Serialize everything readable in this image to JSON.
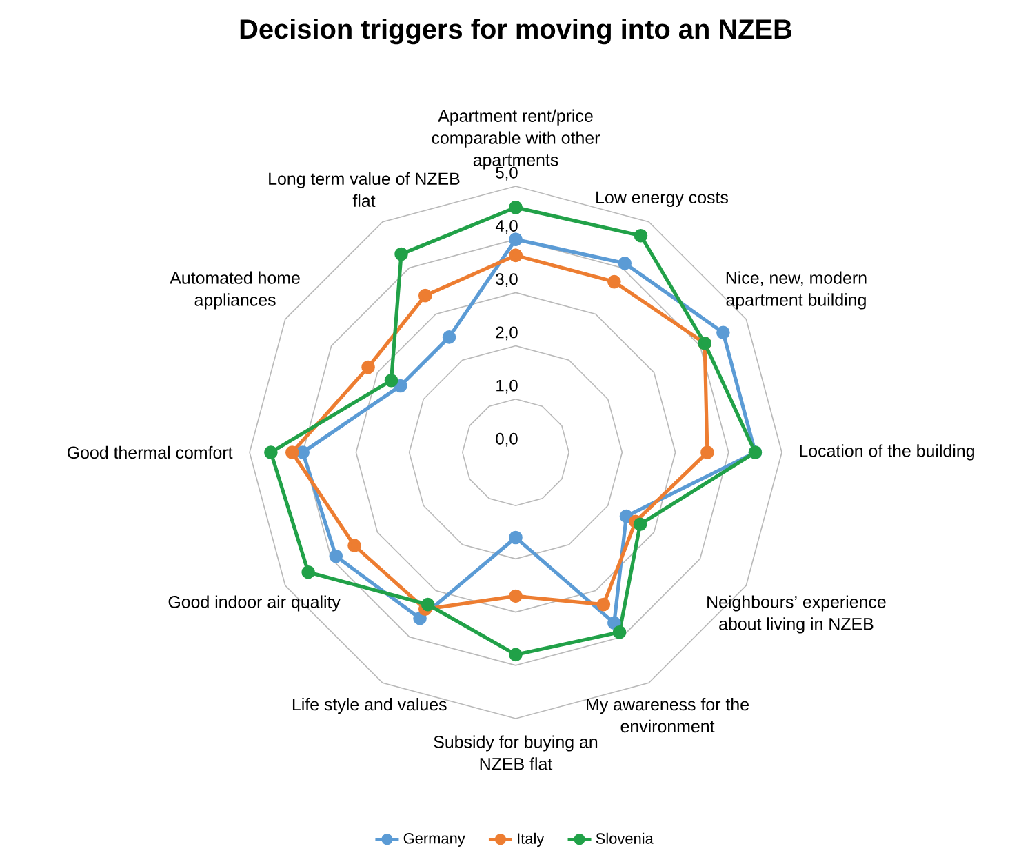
{
  "chart_data": {
    "type": "radar",
    "title": "Decision triggers for moving into an NZEB",
    "categories": [
      "Apartment rent/price comparable with other apartments",
      "Low energy costs",
      "Nice, new, modern apartment building",
      "Location of the building",
      "Neighbours’ experience about living in NZEB",
      "My awareness for the environment",
      "Subsidy for buying an NZEB flat",
      "Life style and values",
      "Good indoor air quality",
      "Good thermal comfort",
      "Automated home appliances",
      "Long term value of NZEB flat"
    ],
    "series": [
      {
        "name": "Germany",
        "color": "#5b9bd5",
        "values": [
          4.0,
          4.1,
          4.5,
          4.5,
          2.4,
          3.7,
          1.6,
          3.6,
          3.9,
          4.0,
          2.5,
          2.5
        ]
      },
      {
        "name": "Italy",
        "color": "#ed7d31",
        "values": [
          3.7,
          3.7,
          4.1,
          3.6,
          2.6,
          3.3,
          2.7,
          3.4,
          3.5,
          4.2,
          3.2,
          3.4
        ]
      },
      {
        "name": "Slovenia",
        "color": "#21a148",
        "values": [
          4.6,
          4.7,
          4.1,
          4.5,
          2.7,
          3.9,
          3.8,
          3.3,
          4.5,
          4.6,
          2.7,
          4.3
        ]
      }
    ],
    "ylim": [
      0,
      5
    ],
    "yticks": [
      {
        "value": 0,
        "label": "0,0"
      },
      {
        "value": 1,
        "label": "1,0"
      },
      {
        "value": 2,
        "label": "2,0"
      },
      {
        "value": 3,
        "label": "3,0"
      },
      {
        "value": 4,
        "label": "4,0"
      },
      {
        "value": 5,
        "label": "5,0"
      }
    ],
    "grid": true,
    "legend": "bottom",
    "marker": "circle",
    "line_style": "solid"
  }
}
